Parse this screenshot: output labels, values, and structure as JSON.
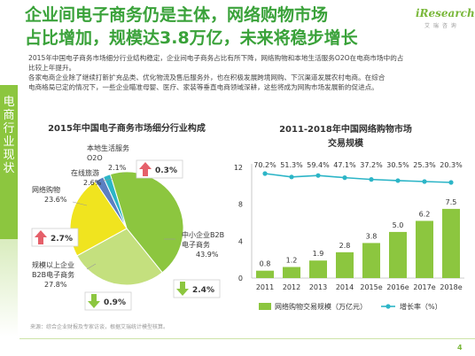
{
  "page": {
    "title_line1": "企业间电子商务仍是主体，网络购物市场",
    "title_line2": "占比增加，规模达3.8万亿，未来将稳步增长",
    "logo_main": "iResearch",
    "logo_sub": "艾 瑞 咨 询",
    "sidebar_label": "电商行业现状",
    "intro_lines": [
      "2015年中国电子商务市场细分行业结构稳定，企业间电子商务占比有所下降，网络购物和本地生活服务O2O在电商市场中的占",
      "比较上年提升。",
      "各家电商企业除了继续打新扩充品类、优化物流及售后服务外，也在积极发展跨境网购、下沉渠道发展农村电商。在综合",
      "电商格局已定的情况下，一些企业瞄准母婴、医疗、家装等垂直电商领域深耕，这些将成为网购市场发展新的促进点。"
    ],
    "source": "来源：综合企业财报及专家访谈，根据艾瑞统计模型核算。",
    "page_number": "4",
    "colors": {
      "green_dark": "#3aa23a",
      "green_light": "#8cc63f",
      "pie_b2b_small": "#8cc63f",
      "pie_b2b_large": "#c4e07e",
      "pie_online": "#f0e41f",
      "pie_travel": "#5b7fc1",
      "pie_o2o": "#2cb5c7",
      "bar": "#8cc63f",
      "line": "#2cb5c7",
      "arrow_up": "#e5606a",
      "arrow_down": "#8cc63f"
    }
  },
  "chart_data": [
    {
      "type": "pie",
      "title": "2015年中国电子商务市场细分行业构成",
      "slices": [
        {
          "name": "中小企业B2B电子商务",
          "label_line1": "中小企业B2B",
          "label_line2": "电子商务",
          "value": 43.9,
          "value_label": "43.9%",
          "change": "2.4%",
          "direction": "down"
        },
        {
          "name": "规模以上企业B2B电子商务",
          "label_line1": "规模以上企业",
          "label_line2": "B2B电子商务",
          "value": 27.8,
          "value_label": "27.8%",
          "change": "0.9%",
          "direction": "down"
        },
        {
          "name": "网络购物",
          "label_line1": "网络购物",
          "label_line2": "",
          "value": 23.6,
          "value_label": "23.6%",
          "change": "2.7%",
          "direction": "up"
        },
        {
          "name": "在线旅游",
          "label_line1": "在线旅游",
          "label_line2": "",
          "value": 2.6,
          "value_label": "2.6%",
          "change": "",
          "direction": ""
        },
        {
          "name": "本地生活服务O2O",
          "label_line1": "本地生活服务",
          "label_line2": "O2O",
          "value": 2.1,
          "value_label": "2.1%",
          "change": "0.3%",
          "direction": "up"
        }
      ]
    },
    {
      "type": "bar",
      "title_line1": "2011-2018年中国网络购物市场",
      "title_line2": "交易规模",
      "categories": [
        "2011",
        "2012",
        "2013",
        "2014",
        "2015e",
        "2016e",
        "2017e",
        "2018e"
      ],
      "series": [
        {
          "name": "网络购物交易规模（万亿元）",
          "kind": "bar",
          "values": [
            0.8,
            1.2,
            1.9,
            2.8,
            3.8,
            5.0,
            6.2,
            7.5
          ]
        },
        {
          "name": "增长率（%）",
          "kind": "line",
          "values": [
            70.2,
            51.3,
            59.4,
            47.1,
            37.2,
            30.5,
            25.3,
            20.3
          ],
          "value_labels": [
            "70.2%",
            "51.3%",
            "59.4%",
            "47.1%",
            "37.2%",
            "30.5%",
            "25.3%",
            "20.3%"
          ]
        }
      ],
      "yticks": [
        "0",
        "4",
        "8",
        "12"
      ],
      "ylim": [
        0,
        12
      ],
      "grid": false,
      "legend": "bottom"
    }
  ]
}
